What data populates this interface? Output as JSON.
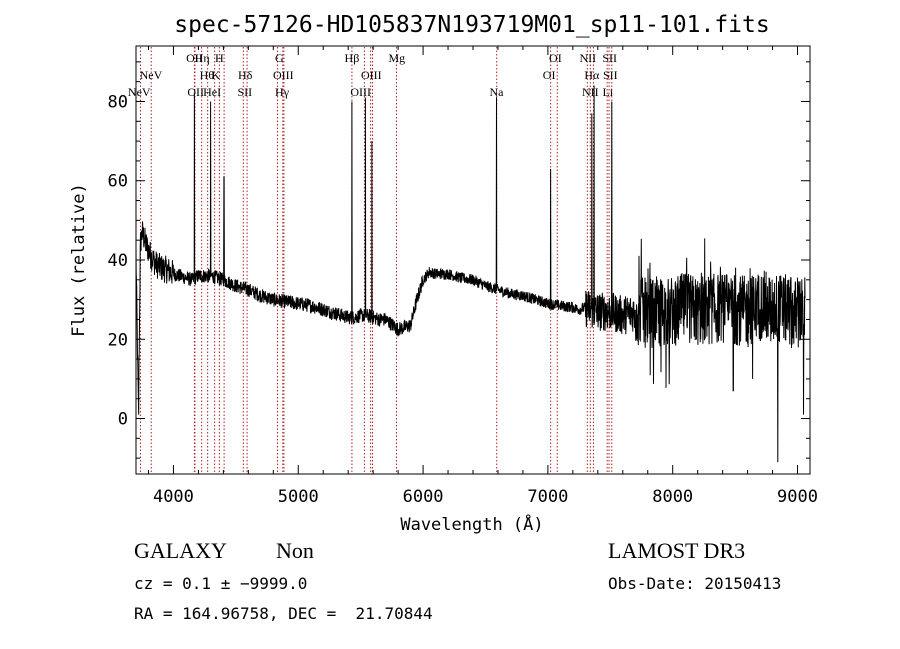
{
  "chart_data": {
    "type": "line",
    "title": "spec-57126-HD105837N193719M01_sp11-101.fits",
    "xlabel": "Wavelength (Å)",
    "ylabel": "Flux (relative)",
    "xlim": [
      3700,
      9100
    ],
    "ylim": [
      -14,
      94
    ],
    "xticks": [
      4000,
      5000,
      6000,
      7000,
      8000,
      9000
    ],
    "yticks": [
      0,
      20,
      40,
      60,
      80
    ],
    "grid": false,
    "line_color": "#000000",
    "marker_color": "#b22222",
    "spectrum_anchors": [
      [
        3700,
        42
      ],
      [
        3720,
        1
      ],
      [
        3735,
        44
      ],
      [
        3750,
        47
      ],
      [
        3780,
        44
      ],
      [
        3820,
        41
      ],
      [
        3860,
        39
      ],
      [
        3900,
        38
      ],
      [
        3950,
        37.5
      ],
      [
        4000,
        36.5
      ],
      [
        4050,
        36
      ],
      [
        4100,
        35.5
      ],
      [
        4150,
        35
      ],
      [
        4200,
        36
      ],
      [
        4300,
        36
      ],
      [
        4400,
        35
      ],
      [
        4500,
        33.5
      ],
      [
        4600,
        32.5
      ],
      [
        4700,
        31
      ],
      [
        4800,
        30
      ],
      [
        4900,
        29.5
      ],
      [
        5000,
        29
      ],
      [
        5100,
        28.5
      ],
      [
        5200,
        27.5
      ],
      [
        5300,
        26.5
      ],
      [
        5400,
        25.5
      ],
      [
        5450,
        25.5
      ],
      [
        5500,
        26
      ],
      [
        5550,
        26
      ],
      [
        5650,
        25
      ],
      [
        5700,
        25
      ],
      [
        5800,
        22.5
      ],
      [
        5900,
        23.5
      ],
      [
        5950,
        30
      ],
      [
        6000,
        35
      ],
      [
        6050,
        37
      ],
      [
        6100,
        36.5
      ],
      [
        6200,
        36.5
      ],
      [
        6300,
        35.5
      ],
      [
        6400,
        35
      ],
      [
        6500,
        33.5
      ],
      [
        6600,
        32.5
      ],
      [
        6700,
        31.5
      ],
      [
        6800,
        31
      ],
      [
        6900,
        30
      ],
      [
        7000,
        29
      ],
      [
        7100,
        28.5
      ],
      [
        7200,
        28
      ],
      [
        7250,
        27.5
      ],
      [
        7300,
        28
      ],
      [
        7400,
        27
      ],
      [
        7500,
        27
      ],
      [
        7600,
        26
      ],
      [
        7700,
        27
      ],
      [
        7800,
        26.5
      ],
      [
        7900,
        27
      ],
      [
        8000,
        27
      ],
      [
        8100,
        28
      ],
      [
        8200,
        27
      ],
      [
        8300,
        27.5
      ],
      [
        8400,
        28
      ],
      [
        8500,
        27.5
      ],
      [
        8600,
        27
      ],
      [
        8700,
        28.5
      ],
      [
        8800,
        28
      ],
      [
        8900,
        27.5
      ],
      [
        9000,
        26
      ],
      [
        9050,
        27
      ]
    ],
    "emission_spikes": [
      {
        "x": 4168,
        "y": 82
      },
      {
        "x": 4298,
        "y": 80
      },
      {
        "x": 4405,
        "y": 61
      },
      {
        "x": 5430,
        "y": 80
      },
      {
        "x": 5538,
        "y": 81
      },
      {
        "x": 5590,
        "y": 70
      },
      {
        "x": 6588,
        "y": 81
      },
      {
        "x": 7022,
        "y": 63
      },
      {
        "x": 7352,
        "y": 77
      },
      {
        "x": 7370,
        "y": 84
      },
      {
        "x": 7512,
        "y": 80
      }
    ],
    "absorption_dips": [
      {
        "x": 3722,
        "y": 1
      },
      {
        "x": 8842,
        "y": -11
      },
      {
        "x": 8485,
        "y": 7
      },
      {
        "x": 8640,
        "y": 10
      },
      {
        "x": 9048,
        "y": 1
      }
    ],
    "line_markers": [
      {
        "label": "NeV",
        "x": 3726,
        "row": 2
      },
      {
        "label": "NeV",
        "x": 3820,
        "row": 1
      },
      {
        "label": "OII",
        "x": 4168,
        "row": 0
      },
      {
        "label": "OII",
        "x": 4178,
        "row": 2
      },
      {
        "label": "Hη",
        "x": 4230,
        "row": 0
      },
      {
        "label": "Hθ",
        "x": 4268,
        "row": 1
      },
      {
        "label": "HeI",
        "x": 4310,
        "row": 2
      },
      {
        "label": "H",
        "x": 4368,
        "row": 0
      },
      {
        "label": "K",
        "x": 4340,
        "row": 1
      },
      {
        "label": "Hδ",
        "x": 4575,
        "row": 1
      },
      {
        "label": "SII",
        "x": 4572,
        "row": 2
      },
      {
        "label": "G",
        "x": 4848,
        "row": 0
      },
      {
        "label": "OIII",
        "x": 4880,
        "row": 1
      },
      {
        "label": "Hγ",
        "x": 4870,
        "row": 2
      },
      {
        "label": "Hβ",
        "x": 5430,
        "row": 0
      },
      {
        "label": "OIII",
        "x": 5585,
        "row": 1
      },
      {
        "label": "OIII",
        "x": 5500,
        "row": 2
      },
      {
        "label": "Mg",
        "x": 5790,
        "row": 0
      },
      {
        "label": "Na",
        "x": 6588,
        "row": 2
      },
      {
        "label": "OI",
        "x": 7060,
        "row": 0
      },
      {
        "label": "OI",
        "x": 7010,
        "row": 1
      },
      {
        "label": "NII",
        "x": 7320,
        "row": 0
      },
      {
        "label": "Hα",
        "x": 7352,
        "row": 1
      },
      {
        "label": "NII",
        "x": 7340,
        "row": 2
      },
      {
        "label": "SII",
        "x": 7495,
        "row": 0
      },
      {
        "label": "SII",
        "x": 7500,
        "row": 1
      },
      {
        "label": "Li",
        "x": 7480,
        "row": 2
      }
    ],
    "marker_lines_x": [
      3736,
      3822,
      4168,
      4172,
      4226,
      4274,
      4330,
      4368,
      4406,
      4560,
      4590,
      4834,
      4876,
      4885,
      5430,
      5530,
      5580,
      5595,
      5787,
      6590,
      7022,
      7075,
      7316,
      7340,
      7365,
      7475,
      7490,
      7512
    ]
  },
  "info": {
    "class": "GALAXY",
    "subclass": "Non",
    "cz": "cz = 0.1 ± −9999.0",
    "radec": "RA = 164.96758, DEC =  21.70844",
    "survey": "LAMOST DR3",
    "obsdate": "Obs-Date: 20150413"
  }
}
